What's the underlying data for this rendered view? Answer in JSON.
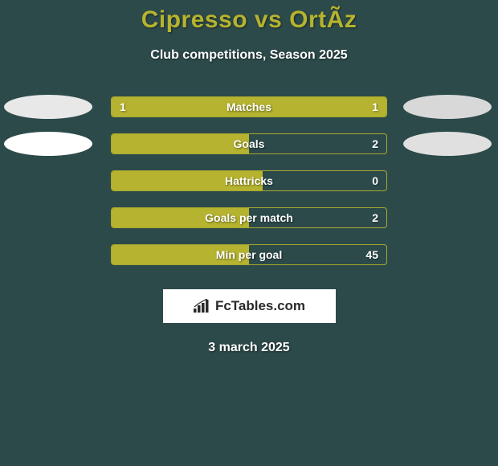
{
  "title": "Cipresso vs OrtÃ­z",
  "subtitle": "Club competitions, Season 2025",
  "date": "3 march 2025",
  "brand": "FcTables.com",
  "colors": {
    "background": "#2d4a4a",
    "accent": "#b5b32f",
    "ellipse_left1": "#e8e8e8",
    "ellipse_left2": "#ffffff",
    "ellipse_right1": "#d8d8d8",
    "ellipse_right2": "#e0e0e0",
    "text": "#ffffff",
    "brand_bg": "#ffffff",
    "brand_text": "#2a2a2a"
  },
  "stats": [
    {
      "label": "Matches",
      "left_val": "1",
      "right_val": "1",
      "left_pct": 50,
      "right_pct": 50,
      "show_ellipses": true,
      "ellipse_left_color": "#e8e8e8",
      "ellipse_right_color": "#d8d8d8"
    },
    {
      "label": "Goals",
      "left_val": "",
      "right_val": "2",
      "left_pct": 50,
      "right_pct": 0,
      "show_ellipses": true,
      "ellipse_left_color": "#ffffff",
      "ellipse_right_color": "#e0e0e0"
    },
    {
      "label": "Hattricks",
      "left_val": "",
      "right_val": "0",
      "left_pct": 55,
      "right_pct": 0,
      "show_ellipses": false
    },
    {
      "label": "Goals per match",
      "left_val": "",
      "right_val": "2",
      "left_pct": 50,
      "right_pct": 0,
      "show_ellipses": false
    },
    {
      "label": "Min per goal",
      "left_val": "",
      "right_val": "45",
      "left_pct": 50,
      "right_pct": 0,
      "show_ellipses": false
    }
  ]
}
